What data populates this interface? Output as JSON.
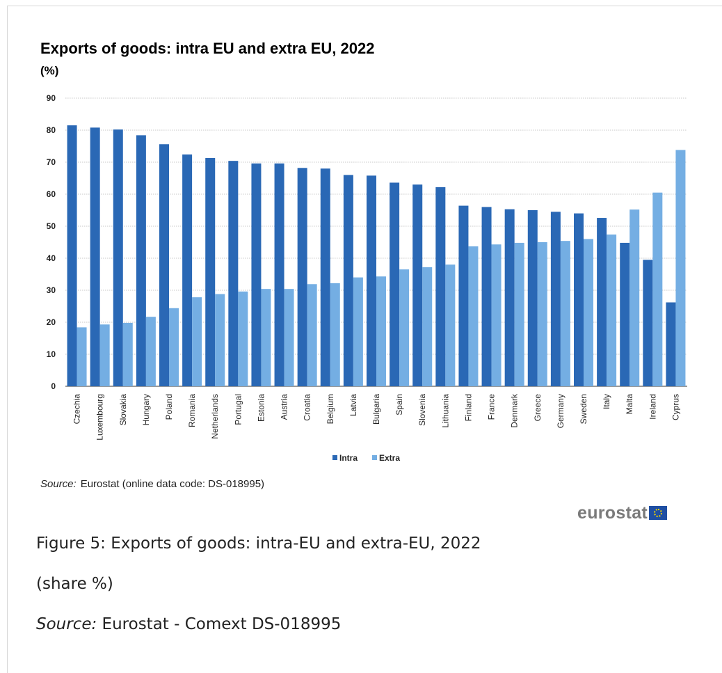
{
  "chart_data": {
    "type": "bar",
    "title": "Exports of goods: intra EU and extra EU, 2022",
    "subtitle": "(%)",
    "categories": [
      "Czechia",
      "Luxembourg",
      "Slovakia",
      "Hungary",
      "Poland",
      "Romania",
      "Netherlands",
      "Portugal",
      "Estonia",
      "Austria",
      "Croatia",
      "Belgium",
      "Latvia",
      "Bulgaria",
      "Spain",
      "Slovenia",
      "Lithuania",
      "Finland",
      "France",
      "Denmark",
      "Greece",
      "Germany",
      "Sweden",
      "Italy",
      "Malta",
      "Ireland",
      "Cyprus"
    ],
    "series": [
      {
        "name": "Intra",
        "color": "#2a68b5",
        "values": [
          81.5,
          80.8,
          80.2,
          78.4,
          75.6,
          72.4,
          71.3,
          70.4,
          69.6,
          69.6,
          68.2,
          68.0,
          66.0,
          65.8,
          63.6,
          63.0,
          62.2,
          56.4,
          56.0,
          55.3,
          55.0,
          54.5,
          54.0,
          52.6,
          44.8,
          39.5,
          26.2
        ]
      },
      {
        "name": "Extra",
        "color": "#74aee3",
        "values": [
          18.4,
          19.3,
          19.8,
          21.7,
          24.4,
          27.8,
          28.8,
          29.6,
          30.4,
          30.4,
          31.9,
          32.2,
          34.0,
          34.3,
          36.5,
          37.2,
          38.0,
          43.7,
          44.3,
          44.8,
          45.0,
          45.4,
          46.0,
          47.4,
          55.2,
          60.5,
          73.8
        ]
      }
    ],
    "yticks": [
      "0",
      "10",
      "20",
      "30",
      "40",
      "50",
      "60",
      "70",
      "80",
      "90"
    ],
    "ylim": [
      0,
      90
    ],
    "grid": true,
    "legend_position": "bottom-center"
  },
  "source": {
    "label": "Source:",
    "text": "Eurostat (online data code: DS-018995)"
  },
  "logo": {
    "text": "eurostat"
  },
  "caption": {
    "figure_title": "Figure 5: Exports of goods: intra-EU and extra-EU, 2022",
    "unit": "(share %)",
    "source_label": "Source:",
    "source_text": " Eurostat - Comext DS-018995"
  }
}
